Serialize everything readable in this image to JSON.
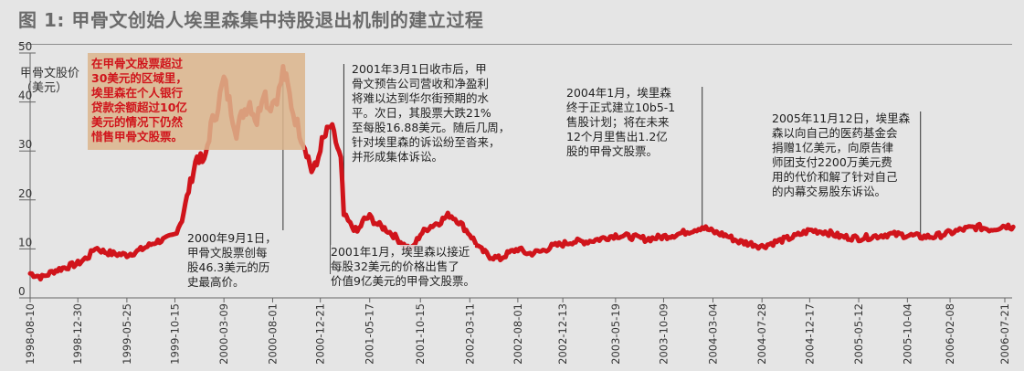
{
  "title": "图 1: 甲骨文创始人埃里森集中持股退出机制的建立过程",
  "chart_data": {
    "type": "line",
    "ylabel": "甲骨文股价\n（美元）",
    "ylim": [
      0,
      50
    ],
    "yticks": [
      0,
      10,
      20,
      30,
      40,
      50
    ],
    "grid": false,
    "x_tick_labels": [
      "1998-08-10",
      "1998-12-30",
      "1999-05-25",
      "1999-10-15",
      "2000-03-09",
      "2000-08-01",
      "2000-12-21",
      "2001-05-17",
      "2001-10-15",
      "2002-03-11",
      "2002-08-01",
      "2002-12-13",
      "2003-05-19",
      "2003-10-09",
      "2004-03-04",
      "2004-07-28",
      "2004-12-17",
      "2005-05-12",
      "2005-10-04",
      "2006-02-08",
      "2006-07-21"
    ],
    "series": [
      {
        "color": "#d0141b",
        "points": [
          [
            "1998-08-10",
            5.0
          ],
          [
            "1998-09-15",
            4.2
          ],
          [
            "1998-10-20",
            5.5
          ],
          [
            "1998-11-20",
            6.2
          ],
          [
            "1998-12-30",
            7.0
          ],
          [
            "1999-02-01",
            8.5
          ],
          [
            "1999-02-20",
            10.3
          ],
          [
            "1999-03-15",
            9.5
          ],
          [
            "1999-04-15",
            9.0
          ],
          [
            "1999-05-25",
            8.8
          ],
          [
            "1999-06-25",
            9.5
          ],
          [
            "1999-07-25",
            10.5
          ],
          [
            "1999-08-20",
            11.5
          ],
          [
            "1999-09-20",
            12.0
          ],
          [
            "1999-10-15",
            13.0
          ],
          [
            "1999-11-05",
            16.0
          ],
          [
            "1999-11-25",
            22.0
          ],
          [
            "1999-12-20",
            29.0
          ],
          [
            "2000-01-10",
            27.5
          ],
          [
            "2000-01-30",
            35.0
          ],
          [
            "2000-02-15",
            38.0
          ],
          [
            "2000-03-09",
            44.5
          ],
          [
            "2000-03-25",
            40.0
          ],
          [
            "2000-04-15",
            34.0
          ],
          [
            "2000-05-05",
            38.0
          ],
          [
            "2000-05-25",
            40.0
          ],
          [
            "2000-06-15",
            36.0
          ],
          [
            "2000-07-05",
            43.0
          ],
          [
            "2000-07-20",
            39.0
          ],
          [
            "2000-08-01",
            40.0
          ],
          [
            "2000-08-20",
            42.0
          ],
          [
            "2000-09-01",
            46.3
          ],
          [
            "2000-09-15",
            43.0
          ],
          [
            "2000-10-01",
            38.0
          ],
          [
            "2000-10-20",
            34.0
          ],
          [
            "2000-11-10",
            30.0
          ],
          [
            "2000-11-25",
            26.0
          ],
          [
            "2000-12-10",
            27.0
          ],
          [
            "2000-12-21",
            31.0
          ],
          [
            "2001-01-05",
            33.0
          ],
          [
            "2001-01-20",
            35.0
          ],
          [
            "2001-02-05",
            32.0
          ],
          [
            "2001-02-20",
            28.0
          ],
          [
            "2001-03-01",
            16.88
          ],
          [
            "2001-03-20",
            15.0
          ],
          [
            "2001-04-10",
            13.5
          ],
          [
            "2001-05-01",
            16.0
          ],
          [
            "2001-05-17",
            16.5
          ],
          [
            "2001-06-10",
            15.0
          ],
          [
            "2001-07-05",
            14.0
          ],
          [
            "2001-08-01",
            12.5
          ],
          [
            "2001-09-01",
            10.5
          ],
          [
            "2001-09-20",
            10.0
          ],
          [
            "2001-10-15",
            13.0
          ],
          [
            "2001-11-10",
            14.5
          ],
          [
            "2001-12-10",
            15.5
          ],
          [
            "2002-01-10",
            17.0
          ],
          [
            "2002-02-01",
            16.0
          ],
          [
            "2002-03-11",
            13.0
          ],
          [
            "2002-04-10",
            10.0
          ],
          [
            "2002-05-10",
            8.5
          ],
          [
            "2002-06-10",
            8.0
          ],
          [
            "2002-07-01",
            9.0
          ],
          [
            "2002-08-01",
            10.0
          ],
          [
            "2002-09-01",
            9.0
          ],
          [
            "2002-10-10",
            9.5
          ],
          [
            "2002-11-10",
            10.5
          ],
          [
            "2002-12-13",
            11.0
          ],
          [
            "2003-01-10",
            11.5
          ],
          [
            "2003-02-20",
            11.5
          ],
          [
            "2003-04-01",
            12.0
          ],
          [
            "2003-05-19",
            12.8
          ],
          [
            "2003-07-01",
            12.5
          ],
          [
            "2003-08-20",
            12.0
          ],
          [
            "2003-10-09",
            12.5
          ],
          [
            "2003-11-20",
            13.0
          ],
          [
            "2004-01-10",
            14.0
          ],
          [
            "2004-02-01",
            14.5
          ],
          [
            "2004-03-04",
            13.5
          ],
          [
            "2004-04-10",
            12.8
          ],
          [
            "2004-05-20",
            11.5
          ],
          [
            "2004-07-01",
            11.0
          ],
          [
            "2004-07-28",
            10.5
          ],
          [
            "2004-09-10",
            11.5
          ],
          [
            "2004-11-01",
            12.5
          ],
          [
            "2004-12-17",
            13.8
          ],
          [
            "2005-02-01",
            13.5
          ],
          [
            "2005-03-20",
            12.5
          ],
          [
            "2005-05-12",
            12.2
          ],
          [
            "2005-06-20",
            12.5
          ],
          [
            "2005-08-10",
            13.0
          ],
          [
            "2005-10-04",
            12.8
          ],
          [
            "2005-11-12",
            12.5
          ],
          [
            "2005-12-20",
            12.5
          ],
          [
            "2006-02-08",
            13.3
          ],
          [
            "2006-03-20",
            14.0
          ],
          [
            "2006-05-01",
            14.5
          ],
          [
            "2006-06-10",
            14.0
          ],
          [
            "2006-07-21",
            14.8
          ],
          [
            "2006-08-15",
            14.5
          ]
        ]
      }
    ],
    "annotations": [
      {
        "text": "在甲骨文股票超过\n30美元的区域里，\n埃里森在个人银行\n贷款余额超过10亿\n美元的情况下仍然\n惜售甲骨文股票。",
        "highlight": true
      },
      {
        "text": "2000年9月1日，\n甲骨文股票创每\n股46.3美元的历\n史最高价。",
        "date": "2000-09-01"
      },
      {
        "text": "2001年3月1日收市后，甲\n骨文预告公司营收和净盈利\n将难以达到华尔街预期的水\n平。次日，其股票大跌21%\n至每股16.88美元。随后几周，\n针对埃里森的诉讼纷至沓来，\n并形成集体诉讼。",
        "date": "2001-03-01"
      },
      {
        "text": "2001年1月，埃里森以接近\n每股32美元的价格出售了\n价值9亿美元的甲骨文股票。",
        "date": "2001-01-20"
      },
      {
        "text": "2004年1月，埃里森\n终于正式建立10b5-1\n售股计划；将在未来\n12个月里售出1.2亿\n股的甲骨文股票。",
        "date": "2004-02-01"
      },
      {
        "text": "2005年11月12日，埃里森\n森以向自己的医药基金会\n捐赠1亿美元，向原告律\n师团支付2200万美元费\n用的代价和解了针对自己\n的内幕交易股东诉讼。",
        "date": "2005-11-12"
      }
    ]
  }
}
